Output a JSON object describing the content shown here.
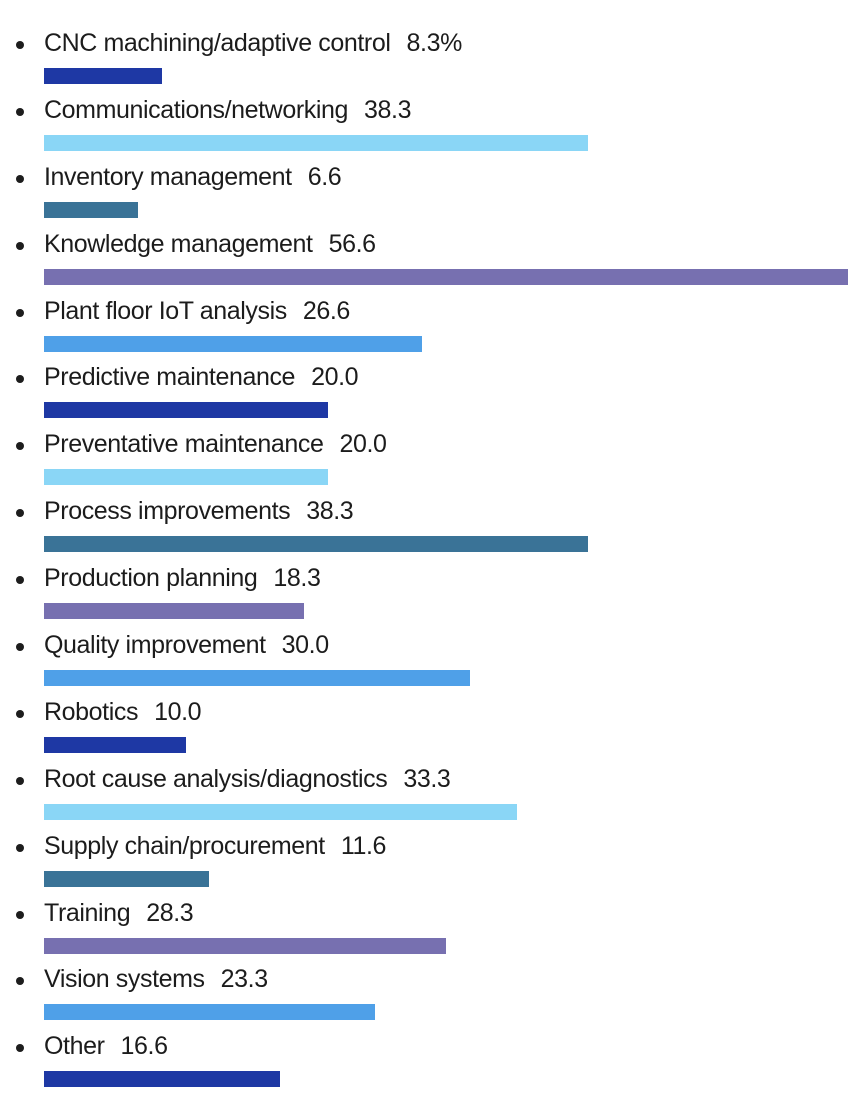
{
  "palette": {
    "navy": "#1e38a4",
    "light_blue": "#8ad6f6",
    "steel_teal": "#3a7397",
    "purple": "#7770b0",
    "medium_blue": "#4fa0e8",
    "text": "#1c1c1c",
    "background": "#ffffff"
  },
  "chart_data": {
    "type": "bar",
    "orientation": "horizontal",
    "title": "",
    "xlabel": "",
    "ylabel": "",
    "unit": "%",
    "xlim": [
      0,
      57
    ],
    "grid": false,
    "legend": false,
    "categories": [
      "CNC machining/adaptive control",
      "Communications/networking",
      "Inventory management",
      "Knowledge management",
      "Plant floor IoT analysis",
      "Predictive maintenance",
      "Preventative maintenance",
      "Process improvements",
      "Production planning",
      "Quality improvement",
      "Robotics",
      "Root cause analysis/diagnostics",
      "Supply chain/procurement",
      "Training",
      "Vision systems",
      "Other"
    ],
    "values": [
      8.3,
      38.3,
      6.6,
      56.6,
      26.6,
      20.0,
      20.0,
      38.3,
      18.3,
      30.0,
      10.0,
      33.3,
      11.6,
      28.3,
      23.3,
      16.6
    ],
    "value_labels": [
      "8.3%",
      "38.3",
      "6.6",
      "56.6",
      "26.6",
      "20.0",
      "20.0",
      "38.3",
      "18.3",
      "30.0",
      "10.0",
      "33.3",
      "11.6",
      "28.3",
      "23.3",
      "16.6"
    ],
    "bar_colors": [
      "#1e38a4",
      "#8ad6f6",
      "#3a7397",
      "#7770b0",
      "#4fa0e8",
      "#1e38a4",
      "#8ad6f6",
      "#3a7397",
      "#7770b0",
      "#4fa0e8",
      "#1e38a4",
      "#8ad6f6",
      "#3a7397",
      "#7770b0",
      "#4fa0e8",
      "#1e38a4"
    ]
  }
}
